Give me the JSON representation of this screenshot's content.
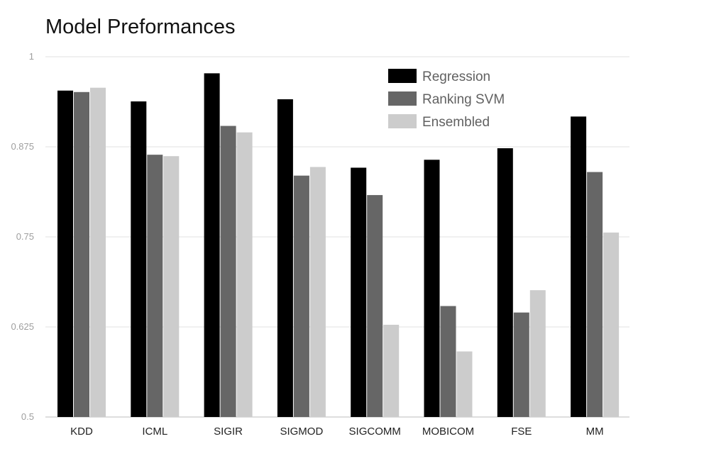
{
  "chart_data": {
    "type": "bar",
    "title": "Model Preformances",
    "xlabel": "",
    "ylabel": "",
    "ylim": [
      0.5,
      1
    ],
    "yticks": [
      "0.5",
      "0.625",
      "0.75",
      "0.875",
      "1"
    ],
    "grid": true,
    "legend_position": "top-right",
    "categories": [
      "KDD",
      "ICML",
      "SIGIR",
      "SIGMOD",
      "SIGCOMM",
      "MOBICOM",
      "FSE",
      "MM"
    ],
    "series": [
      {
        "name": "Regression",
        "color": "#000000",
        "values": [
          0.953,
          0.938,
          0.977,
          0.941,
          0.846,
          0.857,
          0.873,
          0.917
        ]
      },
      {
        "name": "Ranking SVM",
        "color": "#666666",
        "values": [
          0.951,
          0.864,
          0.904,
          0.835,
          0.808,
          0.654,
          0.645,
          0.84
        ]
      },
      {
        "name": "Ensembled",
        "color": "#cccccc",
        "values": [
          0.957,
          0.862,
          0.895,
          0.847,
          0.628,
          0.591,
          0.676,
          0.756
        ]
      }
    ]
  }
}
